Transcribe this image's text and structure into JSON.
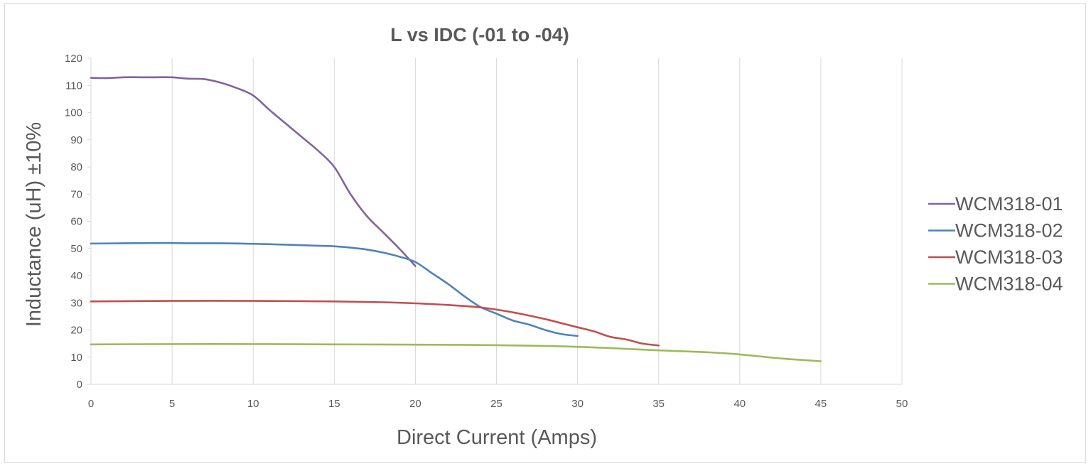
{
  "chart_data": {
    "type": "line",
    "title": "L vs IDC (-01 to -04)",
    "xlabel": "Direct Current (Amps)",
    "ylabel": "Inductance (uH) ±10%",
    "xlim": [
      0,
      50
    ],
    "ylim": [
      0,
      120
    ],
    "xticks": [
      0,
      5,
      10,
      15,
      20,
      25,
      30,
      35,
      40,
      45,
      50
    ],
    "yticks": [
      0,
      10,
      20,
      30,
      40,
      50,
      60,
      70,
      80,
      90,
      100,
      110,
      120
    ],
    "grid": "vertical",
    "legend_position": "right",
    "series": [
      {
        "name": "WCM318-01",
        "color": "#8064a2",
        "x": [
          0,
          1,
          2,
          3,
          4,
          5,
          6,
          7,
          8,
          9,
          10,
          11,
          12,
          13,
          14,
          15,
          16,
          17,
          18,
          19,
          20
        ],
        "y": [
          112.8,
          112.7,
          113.0,
          113.0,
          113.0,
          113.0,
          112.5,
          112.3,
          111.0,
          109.0,
          106.3,
          101.0,
          96.0,
          91.0,
          86.0,
          80.0,
          70.0,
          62.0,
          56.0,
          50.0,
          43.5
        ]
      },
      {
        "name": "WCM318-02",
        "color": "#4f81bd",
        "x": [
          0,
          2,
          4,
          5,
          6,
          8,
          10,
          12,
          14,
          15,
          16,
          17,
          18,
          19,
          20,
          21,
          22,
          23,
          24,
          25,
          26,
          27,
          28,
          29,
          30
        ],
        "y": [
          51.8,
          51.9,
          52.0,
          52.0,
          51.9,
          51.9,
          51.7,
          51.4,
          51.0,
          50.8,
          50.3,
          49.6,
          48.5,
          47.0,
          45.0,
          41.0,
          37.0,
          32.5,
          28.5,
          26.0,
          23.5,
          22.0,
          20.0,
          18.5,
          17.8
        ]
      },
      {
        "name": "WCM318-03",
        "color": "#c0504d",
        "x": [
          0,
          5,
          10,
          15,
          18,
          20,
          22,
          24,
          26,
          28,
          29,
          30,
          31,
          32,
          33,
          34,
          35
        ],
        "y": [
          30.5,
          30.7,
          30.7,
          30.5,
          30.2,
          29.8,
          29.2,
          28.3,
          26.5,
          24.0,
          22.5,
          21.0,
          19.5,
          17.5,
          16.5,
          15.0,
          14.3
        ]
      },
      {
        "name": "WCM318-04",
        "color": "#9bbb59",
        "x": [
          0,
          5,
          10,
          15,
          20,
          25,
          30,
          35,
          38,
          40,
          42,
          43,
          44,
          45
        ],
        "y": [
          14.7,
          14.8,
          14.8,
          14.7,
          14.6,
          14.4,
          13.8,
          12.5,
          11.8,
          11.0,
          9.8,
          9.3,
          8.9,
          8.5
        ]
      }
    ]
  }
}
